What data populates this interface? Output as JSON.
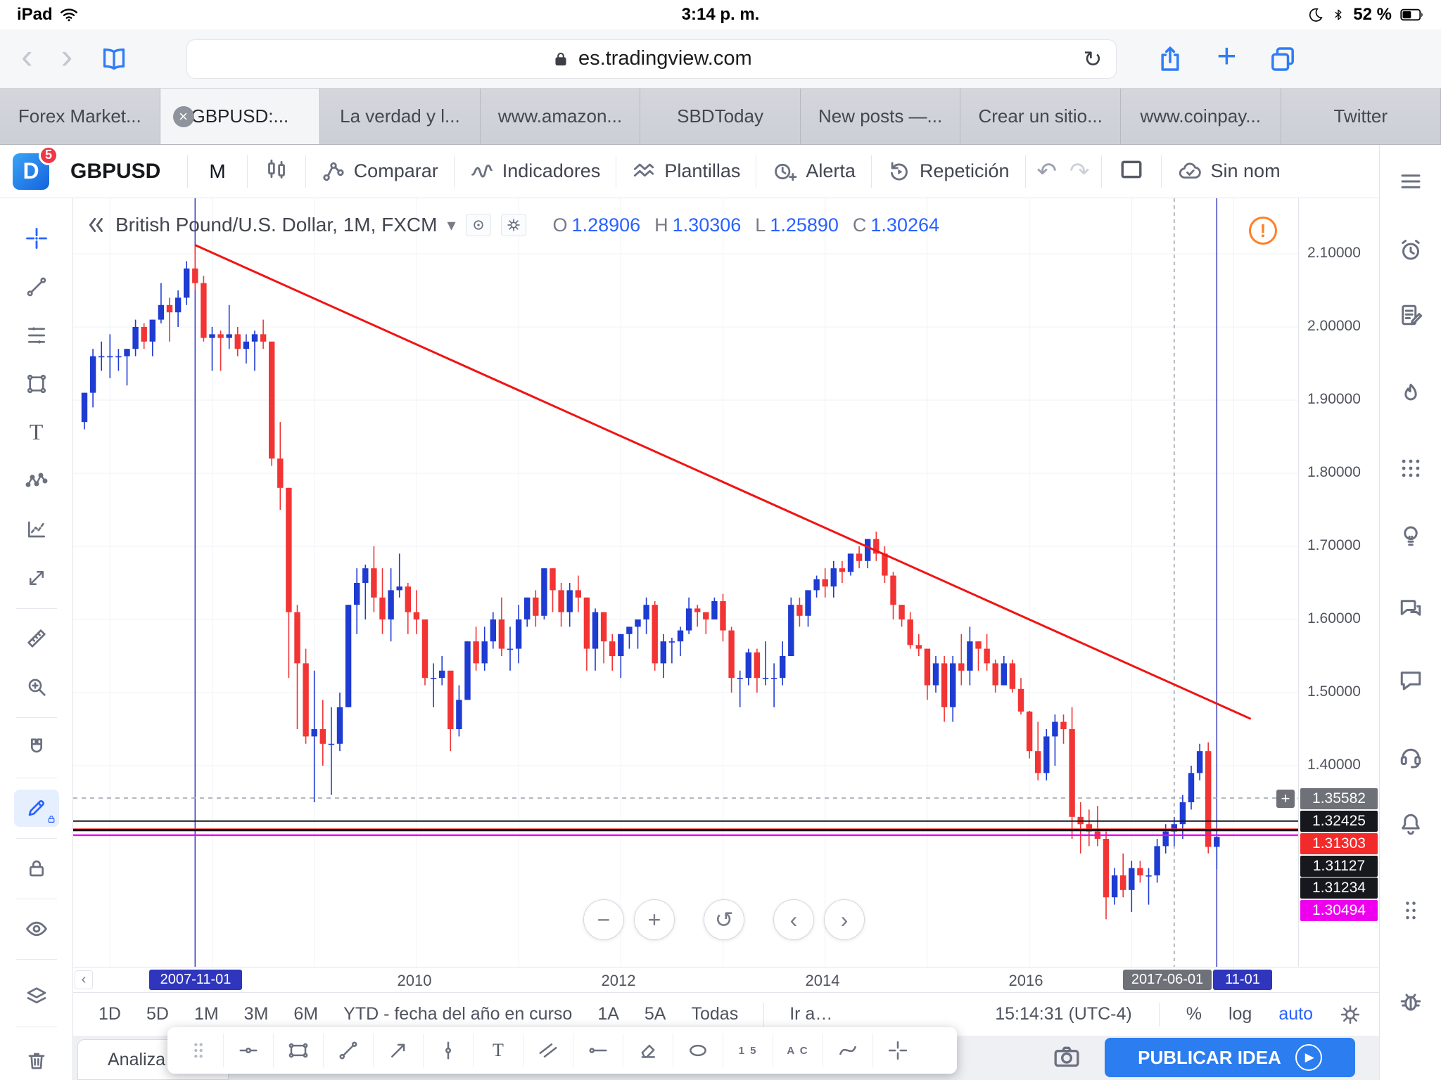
{
  "colors": {
    "accent": "#2962ff",
    "publish_button": "#2c7df0",
    "tab_active_bg": "#f4f5f7",
    "warning": "#ff7f27"
  },
  "glyphs": {
    "close": "×",
    "back": "‹",
    "forward": "›",
    "refresh": "↻",
    "plus": "+",
    "minus": "−",
    "reset": "↺",
    "prev": "‹",
    "next": "›",
    "undo": "↶",
    "redo": "↷",
    "caret_down": "▾",
    "play": "▶",
    "warning": "!",
    "plus_small": "+",
    "text_tool": "T"
  },
  "status_bar": {
    "carrier": "iPad",
    "time": "3:14 p. m.",
    "battery_pct": "52 %"
  },
  "browser": {
    "url": "es.tradingview.com",
    "tabs": [
      {
        "label": "Forex Market...",
        "active": false
      },
      {
        "label": "GBPUSD:...",
        "active": true
      },
      {
        "label": "La verdad y l...",
        "active": false
      },
      {
        "label": "www.amazon...",
        "active": false
      },
      {
        "label": "SBDToday",
        "active": false
      },
      {
        "label": "New posts —...",
        "active": false
      },
      {
        "label": "Crear un sitio...",
        "active": false
      },
      {
        "label": "www.coinpay...",
        "active": false
      },
      {
        "label": "Twitter",
        "active": false
      }
    ]
  },
  "header": {
    "logo_letter": "D",
    "notification_count": "5",
    "symbol": "GBPUSD",
    "interval": "M",
    "compare_label": "Comparar",
    "indicators_label": "Indicadores",
    "templates_label": "Plantillas",
    "alert_label": "Alerta",
    "replay_label": "Repetición",
    "cloud_label": "Sin nom"
  },
  "legend": {
    "title": "British Pound/U.S. Dollar, 1M, FXCM",
    "o_label": "O",
    "o": "1.28906",
    "h_label": "H",
    "h": "1.30306",
    "l_label": "L",
    "l": "1.25890",
    "c_label": "C",
    "c": "1.30264"
  },
  "price_scale": {
    "ticks": [
      "2.10000",
      "2.00000",
      "1.90000",
      "1.80000",
      "1.70000",
      "1.60000",
      "1.50000",
      "1.40000"
    ],
    "labels": [
      {
        "text": "1.35582",
        "bg": "#6e7178",
        "plus": true
      },
      {
        "text": "1.32425",
        "bg": "#16181d"
      },
      {
        "text": "1.31303",
        "bg": "#f32a2a"
      },
      {
        "text": "1.31127",
        "bg": "#16181d"
      },
      {
        "text": "1.31234",
        "bg": "#16181d"
      },
      {
        "text": "1.30494",
        "bg": "#ee00ee"
      }
    ]
  },
  "time_axis": {
    "start_label": "2007-11-01",
    "start_bg": "#2f36bd",
    "years": [
      "2010",
      "2012",
      "2014",
      "2016"
    ],
    "mid_label": "2017-06-01",
    "mid_bg": "#6e7178",
    "end_label": "11-01",
    "end_bg": "#2f36bd"
  },
  "range_bar": {
    "ranges": [
      "1D",
      "5D",
      "1M",
      "3M",
      "6M",
      "YTD - fecha del año en curso",
      "1A",
      "5A",
      "Todas"
    ],
    "goto_label": "Ir a…",
    "clock": "15:14:31 (UTC-4)",
    "percent_label": "%",
    "log_label": "log",
    "auto_label": "auto"
  },
  "footer": {
    "panel_label": "Analiza",
    "publish_label": "PUBLICAR IDEA"
  },
  "drawbar": {
    "bars_label": "1 5",
    "letters_label": "A C"
  },
  "chart_data": {
    "type": "candlestick",
    "title": "British Pound/U.S. Dollar, 1M, FXCM",
    "symbol": "GBPUSD",
    "exchange": "FXCM",
    "timeframe": "1M",
    "ohlc_current": {
      "o": 1.28906,
      "h": 1.30306,
      "l": 1.2589,
      "c": 1.30264
    },
    "x_start_month": "2006-10",
    "x_year_labels": [
      "2010",
      "2012",
      "2014",
      "2016"
    ],
    "y_ticks": [
      2.1,
      2.0,
      1.9,
      1.8,
      1.7,
      1.6,
      1.5,
      1.4
    ],
    "ylim": [
      1.17,
      2.16
    ],
    "up_color": "#1e3bd2",
    "down_color": "#f23434",
    "trendline": {
      "from": {
        "month": "2007-11",
        "price": 2.112
      },
      "to": {
        "month": "2018-03",
        "price": 1.464
      },
      "color": "#f01414"
    },
    "vlines": [
      {
        "month": "2007-11",
        "color": "#3a40c0",
        "style": "solid"
      },
      {
        "month": "2017-06",
        "color": "#9aa0aa",
        "style": "dashed"
      },
      {
        "month": "2017-11",
        "color": "#3a40c0",
        "style": "solid"
      }
    ],
    "hlines": [
      {
        "price": 1.35582,
        "color": "#9aa0aa",
        "style": "dashed",
        "width": 1.5
      },
      {
        "price": 1.32425,
        "color": "#16181d",
        "style": "solid",
        "width": 2
      },
      {
        "price": 1.31303,
        "color": "#f32a2a",
        "style": "solid",
        "width": 2.5
      },
      {
        "price": 1.31127,
        "color": "#16181d",
        "style": "solid",
        "width": 2
      },
      {
        "price": 1.31234,
        "color": "#16181d",
        "style": "solid",
        "width": 2
      },
      {
        "price": 1.30494,
        "color": "#ee00ee",
        "style": "solid",
        "width": 2.5
      }
    ],
    "candles": [
      [
        1.87,
        1.91,
        1.86,
        1.91
      ],
      [
        1.91,
        1.97,
        1.89,
        1.96
      ],
      [
        1.96,
        1.98,
        1.94,
        1.96
      ],
      [
        1.96,
        1.99,
        1.93,
        1.96
      ],
      [
        1.96,
        1.97,
        1.94,
        1.96
      ],
      [
        1.96,
        1.97,
        1.92,
        1.97
      ],
      [
        1.97,
        2.01,
        1.96,
        2.0
      ],
      [
        2.0,
        2.005,
        1.97,
        1.98
      ],
      [
        1.98,
        2.01,
        1.96,
        2.01
      ],
      [
        2.01,
        2.06,
        2.005,
        2.03
      ],
      [
        2.03,
        2.04,
        1.98,
        2.02
      ],
      [
        2.02,
        2.05,
        2.0,
        2.04
      ],
      [
        2.04,
        2.09,
        2.03,
        2.08
      ],
      [
        2.08,
        2.112,
        2.05,
        2.06
      ],
      [
        2.06,
        2.07,
        1.98,
        1.985
      ],
      [
        1.985,
        2.0,
        1.94,
        1.99
      ],
      [
        1.99,
        1.995,
        1.94,
        1.985
      ],
      [
        1.985,
        2.03,
        1.97,
        1.99
      ],
      [
        1.99,
        2.0,
        1.96,
        1.97
      ],
      [
        1.97,
        1.99,
        1.95,
        1.98
      ],
      [
        1.98,
        1.995,
        1.94,
        1.99
      ],
      [
        1.99,
        2.01,
        1.97,
        1.98
      ],
      [
        1.98,
        1.98,
        1.81,
        1.82
      ],
      [
        1.82,
        1.87,
        1.75,
        1.78
      ],
      [
        1.78,
        1.78,
        1.52,
        1.61
      ],
      [
        1.61,
        1.62,
        1.45,
        1.54
      ],
      [
        1.54,
        1.56,
        1.43,
        1.44
      ],
      [
        1.44,
        1.53,
        1.35,
        1.45
      ],
      [
        1.45,
        1.49,
        1.4,
        1.43
      ],
      [
        1.43,
        1.48,
        1.36,
        1.43
      ],
      [
        1.43,
        1.5,
        1.42,
        1.48
      ],
      [
        1.48,
        1.62,
        1.48,
        1.62
      ],
      [
        1.62,
        1.67,
        1.58,
        1.65
      ],
      [
        1.65,
        1.675,
        1.6,
        1.67
      ],
      [
        1.67,
        1.7,
        1.61,
        1.63
      ],
      [
        1.63,
        1.67,
        1.58,
        1.6
      ],
      [
        1.6,
        1.67,
        1.57,
        1.64
      ],
      [
        1.64,
        1.69,
        1.63,
        1.645
      ],
      [
        1.645,
        1.65,
        1.58,
        1.61
      ],
      [
        1.61,
        1.64,
        1.58,
        1.6
      ],
      [
        1.6,
        1.6,
        1.51,
        1.52
      ],
      [
        1.52,
        1.54,
        1.48,
        1.52
      ],
      [
        1.52,
        1.55,
        1.51,
        1.53
      ],
      [
        1.53,
        1.53,
        1.42,
        1.45
      ],
      [
        1.45,
        1.51,
        1.44,
        1.49
      ],
      [
        1.49,
        1.57,
        1.49,
        1.57
      ],
      [
        1.57,
        1.59,
        1.53,
        1.54
      ],
      [
        1.54,
        1.59,
        1.53,
        1.57
      ],
      [
        1.57,
        1.61,
        1.56,
        1.6
      ],
      [
        1.6,
        1.63,
        1.55,
        1.56
      ],
      [
        1.56,
        1.59,
        1.53,
        1.56
      ],
      [
        1.56,
        1.62,
        1.54,
        1.6
      ],
      [
        1.6,
        1.63,
        1.59,
        1.63
      ],
      [
        1.63,
        1.64,
        1.59,
        1.605
      ],
      [
        1.605,
        1.67,
        1.6,
        1.67
      ],
      [
        1.67,
        1.67,
        1.61,
        1.64
      ],
      [
        1.64,
        1.65,
        1.59,
        1.61
      ],
      [
        1.61,
        1.65,
        1.59,
        1.64
      ],
      [
        1.64,
        1.66,
        1.61,
        1.63
      ],
      [
        1.63,
        1.63,
        1.53,
        1.56
      ],
      [
        1.56,
        1.615,
        1.53,
        1.61
      ],
      [
        1.61,
        1.61,
        1.54,
        1.57
      ],
      [
        1.57,
        1.58,
        1.53,
        1.55
      ],
      [
        1.55,
        1.58,
        1.52,
        1.58
      ],
      [
        1.58,
        1.59,
        1.56,
        1.59
      ],
      [
        1.59,
        1.6,
        1.56,
        1.6
      ],
      [
        1.6,
        1.63,
        1.58,
        1.62
      ],
      [
        1.62,
        1.625,
        1.53,
        1.54
      ],
      [
        1.54,
        1.58,
        1.52,
        1.57
      ],
      [
        1.57,
        1.575,
        1.54,
        1.57
      ],
      [
        1.57,
        1.59,
        1.55,
        1.585
      ],
      [
        1.585,
        1.63,
        1.58,
        1.615
      ],
      [
        1.615,
        1.62,
        1.59,
        1.61
      ],
      [
        1.61,
        1.61,
        1.58,
        1.6
      ],
      [
        1.6,
        1.63,
        1.6,
        1.625
      ],
      [
        1.625,
        1.635,
        1.57,
        1.585
      ],
      [
        1.585,
        1.59,
        1.5,
        1.52
      ],
      [
        1.52,
        1.53,
        1.48,
        1.52
      ],
      [
        1.52,
        1.56,
        1.51,
        1.555
      ],
      [
        1.555,
        1.56,
        1.5,
        1.52
      ],
      [
        1.52,
        1.57,
        1.51,
        1.52
      ],
      [
        1.52,
        1.54,
        1.48,
        1.52
      ],
      [
        1.52,
        1.57,
        1.51,
        1.55
      ],
      [
        1.55,
        1.63,
        1.55,
        1.62
      ],
      [
        1.62,
        1.63,
        1.59,
        1.605
      ],
      [
        1.605,
        1.64,
        1.59,
        1.64
      ],
      [
        1.64,
        1.66,
        1.63,
        1.655
      ],
      [
        1.655,
        1.67,
        1.63,
        1.645
      ],
      [
        1.645,
        1.68,
        1.63,
        1.67
      ],
      [
        1.67,
        1.68,
        1.65,
        1.665
      ],
      [
        1.665,
        1.69,
        1.66,
        1.69
      ],
      [
        1.69,
        1.7,
        1.67,
        1.68
      ],
      [
        1.68,
        1.71,
        1.67,
        1.71
      ],
      [
        1.71,
        1.72,
        1.68,
        1.69
      ],
      [
        1.69,
        1.7,
        1.65,
        1.66
      ],
      [
        1.66,
        1.665,
        1.6,
        1.62
      ],
      [
        1.62,
        1.62,
        1.59,
        1.6
      ],
      [
        1.6,
        1.61,
        1.56,
        1.565
      ],
      [
        1.565,
        1.58,
        1.55,
        1.56
      ],
      [
        1.56,
        1.56,
        1.49,
        1.51
      ],
      [
        1.51,
        1.55,
        1.5,
        1.54
      ],
      [
        1.54,
        1.55,
        1.46,
        1.48
      ],
      [
        1.48,
        1.55,
        1.46,
        1.54
      ],
      [
        1.54,
        1.58,
        1.51,
        1.53
      ],
      [
        1.53,
        1.59,
        1.51,
        1.57
      ],
      [
        1.57,
        1.57,
        1.53,
        1.56
      ],
      [
        1.56,
        1.58,
        1.53,
        1.54
      ],
      [
        1.54,
        1.545,
        1.5,
        1.51
      ],
      [
        1.51,
        1.55,
        1.51,
        1.54
      ],
      [
        1.54,
        1.545,
        1.5,
        1.505
      ],
      [
        1.505,
        1.52,
        1.47,
        1.474
      ],
      [
        1.474,
        1.475,
        1.41,
        1.42
      ],
      [
        1.42,
        1.46,
        1.38,
        1.39
      ],
      [
        1.39,
        1.45,
        1.38,
        1.44
      ],
      [
        1.44,
        1.47,
        1.4,
        1.46
      ],
      [
        1.46,
        1.47,
        1.43,
        1.45
      ],
      [
        1.45,
        1.48,
        1.3,
        1.33
      ],
      [
        1.33,
        1.35,
        1.28,
        1.32
      ],
      [
        1.32,
        1.34,
        1.29,
        1.31
      ],
      [
        1.31,
        1.345,
        1.29,
        1.3
      ],
      [
        1.3,
        1.31,
        1.19,
        1.22
      ],
      [
        1.22,
        1.26,
        1.21,
        1.25
      ],
      [
        1.25,
        1.28,
        1.22,
        1.23
      ],
      [
        1.23,
        1.27,
        1.2,
        1.26
      ],
      [
        1.26,
        1.27,
        1.24,
        1.25
      ],
      [
        1.25,
        1.26,
        1.21,
        1.25
      ],
      [
        1.25,
        1.3,
        1.24,
        1.29
      ],
      [
        1.29,
        1.32,
        1.28,
        1.31
      ],
      [
        1.31,
        1.33,
        1.29,
        1.32
      ],
      [
        1.32,
        1.36,
        1.3,
        1.35
      ],
      [
        1.35,
        1.4,
        1.34,
        1.39
      ],
      [
        1.39,
        1.43,
        1.38,
        1.42
      ],
      [
        1.42,
        1.432,
        1.28,
        1.289
      ],
      [
        1.28906,
        1.30306,
        1.2589,
        1.30264
      ]
    ]
  }
}
